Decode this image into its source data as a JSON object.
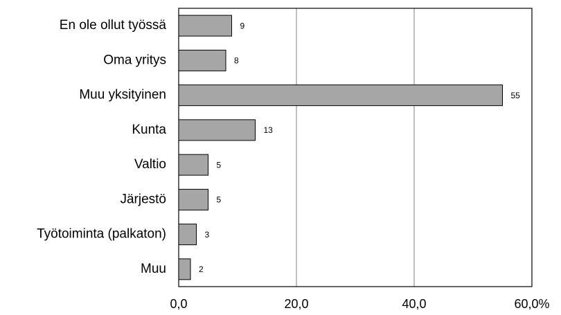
{
  "chart_data": {
    "type": "bar",
    "orientation": "horizontal",
    "categories": [
      "En ole ollut työssä",
      "Oma yritys",
      "Muu yksityinen",
      "Kunta",
      "Valtio",
      "Järjestö",
      "Työtoiminta (palkaton)",
      "Muu"
    ],
    "values": [
      9,
      8,
      55,
      13,
      5,
      5,
      3,
      2
    ],
    "color": "#a6a6a6",
    "xlim": [
      0,
      60
    ],
    "xticks": [
      {
        "value": 0,
        "label": "0,0"
      },
      {
        "value": 20,
        "label": "20,0"
      },
      {
        "value": 40,
        "label": "40,0"
      },
      {
        "value": 60,
        "label": "60,0%"
      }
    ],
    "grid": true
  }
}
